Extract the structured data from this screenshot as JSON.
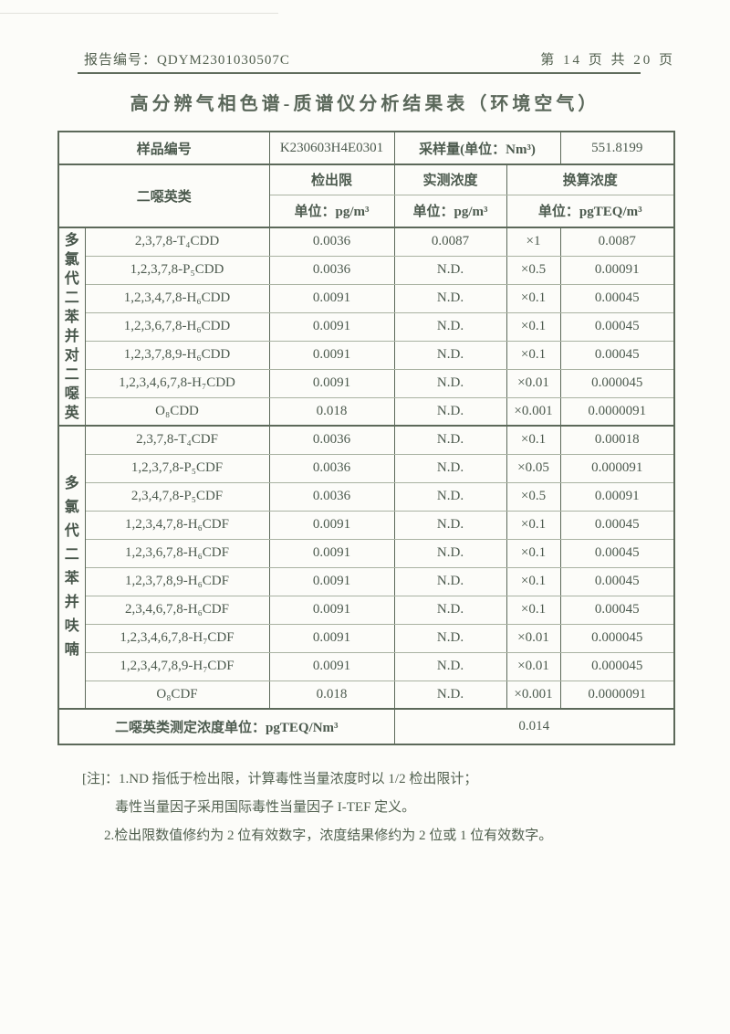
{
  "colors": {
    "ink": "#4c5a4e",
    "border": "#5c695a"
  },
  "header": {
    "report_label": "报告编号：",
    "report_no": "QDYM2301030507C",
    "page_info": "第 14 页 共 20 页"
  },
  "title": "高分辨气相色谱-质谱仪分析结果表（环境空气）",
  "table": {
    "sample": {
      "label": "样品编号",
      "id": "K230603H4E0301",
      "volume_label": "采样量(单位：Nm³)",
      "volume": "551.8199"
    },
    "columns": {
      "category": "二噁英类",
      "detection_limit": "检出限",
      "measured": "实测浓度",
      "converted": "换算浓度",
      "unit_detection": "单位：pg/m³",
      "unit_measured": "单位：pg/m³",
      "unit_converted": "单位：pgTEQ/m³"
    },
    "groups": [
      {
        "label": "多氯代二苯并对二噁英"
      },
      {
        "label": "多氯代二苯并呋喃"
      }
    ],
    "rows": [
      {
        "name": "2,3,7,8-T₄CDD",
        "dl": "0.0036",
        "measured": "0.0087",
        "factor": "×1",
        "value": "0.0087"
      },
      {
        "name": "1,2,3,7,8-P₅CDD",
        "dl": "0.0036",
        "measured": "N.D.",
        "factor": "×0.5",
        "value": "0.00091"
      },
      {
        "name": "1,2,3,4,7,8-H₆CDD",
        "dl": "0.0091",
        "measured": "N.D.",
        "factor": "×0.1",
        "value": "0.00045"
      },
      {
        "name": "1,2,3,6,7,8-H₆CDD",
        "dl": "0.0091",
        "measured": "N.D.",
        "factor": "×0.1",
        "value": "0.00045"
      },
      {
        "name": "1,2,3,7,8,9-H₆CDD",
        "dl": "0.0091",
        "measured": "N.D.",
        "factor": "×0.1",
        "value": "0.00045"
      },
      {
        "name": "1,2,3,4,6,7,8-H₇CDD",
        "dl": "0.0091",
        "measured": "N.D.",
        "factor": "×0.01",
        "value": "0.000045"
      },
      {
        "name": "O₈CDD",
        "dl": "0.018",
        "measured": "N.D.",
        "factor": "×0.001",
        "value": "0.0000091"
      },
      {
        "name": "2,3,7,8-T₄CDF",
        "dl": "0.0036",
        "measured": "N.D.",
        "factor": "×0.1",
        "value": "0.00018"
      },
      {
        "name": "1,2,3,7,8-P₅CDF",
        "dl": "0.0036",
        "measured": "N.D.",
        "factor": "×0.05",
        "value": "0.000091"
      },
      {
        "name": "2,3,4,7,8-P₅CDF",
        "dl": "0.0036",
        "measured": "N.D.",
        "factor": "×0.5",
        "value": "0.00091"
      },
      {
        "name": "1,2,3,4,7,8-H₆CDF",
        "dl": "0.0091",
        "measured": "N.D.",
        "factor": "×0.1",
        "value": "0.00045"
      },
      {
        "name": "1,2,3,6,7,8-H₆CDF",
        "dl": "0.0091",
        "measured": "N.D.",
        "factor": "×0.1",
        "value": "0.00045"
      },
      {
        "name": "1,2,3,7,8,9-H₆CDF",
        "dl": "0.0091",
        "measured": "N.D.",
        "factor": "×0.1",
        "value": "0.00045"
      },
      {
        "name": "2,3,4,6,7,8-H₆CDF",
        "dl": "0.0091",
        "measured": "N.D.",
        "factor": "×0.1",
        "value": "0.00045"
      },
      {
        "name": "1,2,3,4,6,7,8-H₇CDF",
        "dl": "0.0091",
        "measured": "N.D.",
        "factor": "×0.01",
        "value": "0.000045"
      },
      {
        "name": "1,2,3,4,7,8,9-H₇CDF",
        "dl": "0.0091",
        "measured": "N.D.",
        "factor": "×0.01",
        "value": "0.000045"
      },
      {
        "name": "O₈CDF",
        "dl": "0.018",
        "measured": "N.D.",
        "factor": "×0.001",
        "value": "0.0000091"
      }
    ],
    "footer": {
      "label": "二噁英类测定浓度单位：pgTEQ/Nm³",
      "value": "0.014"
    }
  },
  "notes": {
    "prefix": "[注]：",
    "line1": "1.ND 指低于检出限，计算毒性当量浓度时以 1/2 检出限计；",
    "line2": "毒性当量因子采用国际毒性当量因子 I-TEF 定义。",
    "line3": "2.检出限数值修约为 2 位有效数字，浓度结果修约为 2 位或 1 位有效数字。"
  }
}
